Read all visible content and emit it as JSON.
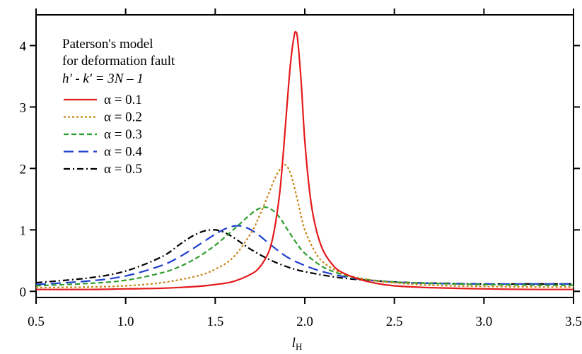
{
  "chart_data": {
    "type": "line",
    "xlabel": "l",
    "xlabel_sub": "H",
    "ylabel": "",
    "xlim": [
      0.5,
      3.5
    ],
    "ylim": [
      -0.1,
      4.5
    ],
    "xticks": [
      "0.5",
      "1.0",
      "1.5",
      "2.0",
      "2.5",
      "3.0",
      "3.5"
    ],
    "xtick_values": [
      0.5,
      1.0,
      1.5,
      2.0,
      2.5,
      3.0,
      3.5
    ],
    "yticks": [
      "0",
      "1",
      "2",
      "3",
      "4"
    ],
    "ytick_values": [
      0,
      1,
      2,
      3,
      4
    ],
    "grid": false,
    "legend_position": "top-left",
    "annotation": {
      "line1": "Paterson's model",
      "line2": "for deformation fault",
      "line3": "h' - k' = 3N – 1"
    },
    "series": [
      {
        "name": "α = 0.1",
        "color": "#e41a1c",
        "dash": "solid",
        "x": [
          0.5,
          0.8,
          1.0,
          1.2,
          1.4,
          1.5,
          1.6,
          1.7,
          1.75,
          1.8,
          1.83,
          1.86,
          1.88,
          1.9,
          1.92,
          1.94,
          1.95,
          1.96,
          1.98,
          2.0,
          2.03,
          2.06,
          2.1,
          2.15,
          2.2,
          2.3,
          2.4,
          2.5,
          2.7,
          3.0,
          3.3,
          3.5
        ],
        "y": [
          0.03,
          0.03,
          0.04,
          0.05,
          0.08,
          0.11,
          0.16,
          0.28,
          0.4,
          0.65,
          1.0,
          1.6,
          2.25,
          3.0,
          3.7,
          4.15,
          4.22,
          4.1,
          3.4,
          2.45,
          1.55,
          1.05,
          0.68,
          0.45,
          0.32,
          0.2,
          0.13,
          0.09,
          0.06,
          0.04,
          0.03,
          0.03
        ]
      },
      {
        "name": "α = 0.2",
        "color": "#c8861b",
        "dash": "dotted",
        "x": [
          0.5,
          0.8,
          1.0,
          1.2,
          1.4,
          1.5,
          1.6,
          1.7,
          1.75,
          1.8,
          1.83,
          1.86,
          1.89,
          1.92,
          1.95,
          1.98,
          2.0,
          2.05,
          2.1,
          2.2,
          2.3,
          2.4,
          2.5,
          2.7,
          3.0,
          3.3,
          3.5
        ],
        "y": [
          0.06,
          0.07,
          0.09,
          0.14,
          0.25,
          0.36,
          0.55,
          0.95,
          1.25,
          1.6,
          1.82,
          1.98,
          2.06,
          1.92,
          1.6,
          1.22,
          1.0,
          0.68,
          0.48,
          0.3,
          0.22,
          0.17,
          0.14,
          0.1,
          0.08,
          0.07,
          0.07
        ]
      },
      {
        "name": "α = 0.3",
        "color": "#2e9e2e",
        "dash": "dashed",
        "x": [
          0.5,
          0.8,
          1.0,
          1.2,
          1.3,
          1.4,
          1.5,
          1.6,
          1.65,
          1.7,
          1.74,
          1.78,
          1.82,
          1.86,
          1.9,
          1.95,
          2.0,
          2.1,
          2.2,
          2.3,
          2.5,
          2.7,
          3.0,
          3.3,
          3.5
        ],
        "y": [
          0.09,
          0.13,
          0.18,
          0.3,
          0.4,
          0.55,
          0.75,
          1.0,
          1.13,
          1.26,
          1.34,
          1.37,
          1.32,
          1.2,
          1.02,
          0.8,
          0.62,
          0.4,
          0.28,
          0.21,
          0.15,
          0.13,
          0.11,
          0.1,
          0.1
        ]
      },
      {
        "name": "α = 0.4",
        "color": "#1f3fcf",
        "dash": "longdash",
        "x": [
          0.5,
          0.8,
          1.0,
          1.2,
          1.3,
          1.4,
          1.5,
          1.55,
          1.6,
          1.65,
          1.7,
          1.75,
          1.8,
          1.9,
          2.0,
          2.1,
          2.2,
          2.3,
          2.5,
          2.7,
          3.0,
          3.3,
          3.5
        ],
        "y": [
          0.11,
          0.17,
          0.25,
          0.42,
          0.56,
          0.74,
          0.93,
          1.01,
          1.06,
          1.06,
          1.0,
          0.9,
          0.78,
          0.56,
          0.42,
          0.32,
          0.25,
          0.2,
          0.15,
          0.13,
          0.12,
          0.12,
          0.12
        ]
      },
      {
        "name": "α = 0.5",
        "color": "#000000",
        "dash": "dashdot",
        "x": [
          0.5,
          0.8,
          1.0,
          1.2,
          1.3,
          1.35,
          1.4,
          1.45,
          1.5,
          1.55,
          1.6,
          1.65,
          1.7,
          1.8,
          1.9,
          2.0,
          2.2,
          2.4,
          2.6,
          2.8,
          3.0,
          3.3,
          3.5
        ],
        "y": [
          0.14,
          0.22,
          0.33,
          0.56,
          0.76,
          0.86,
          0.94,
          0.99,
          1.0,
          0.96,
          0.88,
          0.78,
          0.68,
          0.52,
          0.4,
          0.32,
          0.22,
          0.17,
          0.14,
          0.13,
          0.12,
          0.12,
          0.12
        ]
      }
    ]
  }
}
